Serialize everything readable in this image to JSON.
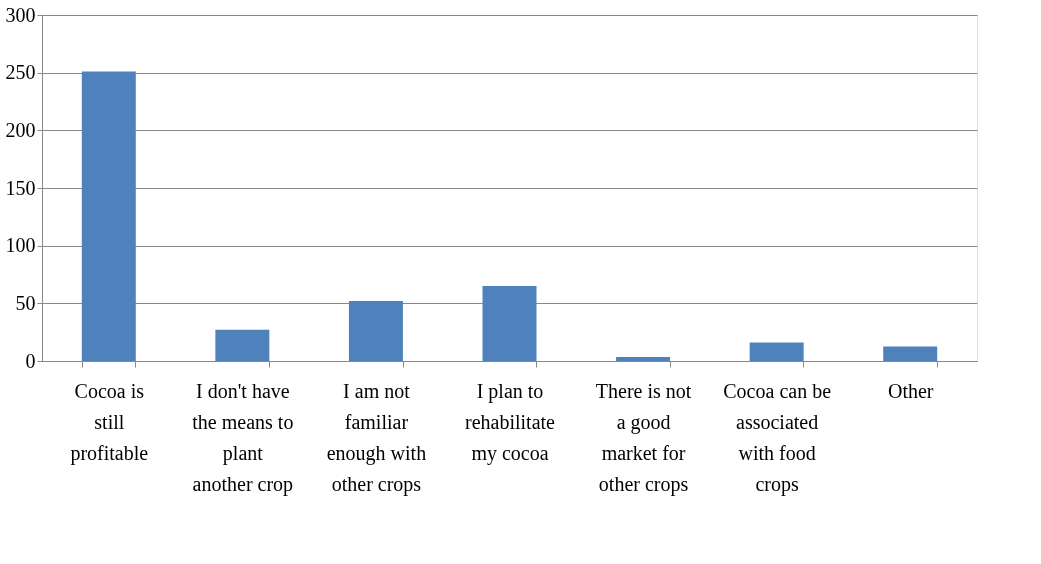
{
  "chart_data": {
    "type": "bar",
    "categories": [
      "Cocoa is still profitable",
      "I don't have the means to plant another crop",
      "I am not familiar enough with other crops",
      "I plan to rehabilitate my cocoa",
      "There is not a good market for other crops",
      "Cocoa can be associated with food crops",
      "Other"
    ],
    "values": [
      251,
      27,
      52,
      65,
      3.5,
      16,
      12.5
    ],
    "color": "#4f81bd",
    "ylim": [
      0,
      300
    ],
    "yticks": [
      0,
      50,
      100,
      150,
      200,
      250,
      300
    ],
    "grid": "y"
  }
}
